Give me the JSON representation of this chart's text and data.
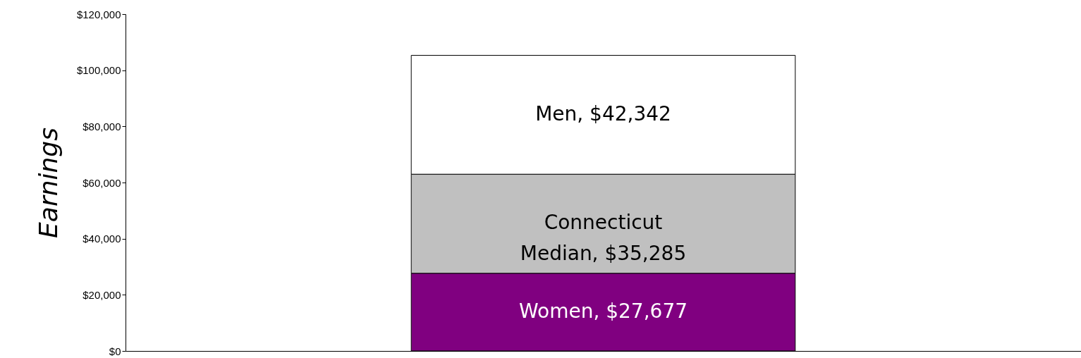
{
  "chart_data": {
    "type": "bar",
    "stacked": true,
    "ylabel": "Earnings",
    "categories": [
      null
    ],
    "series": [
      {
        "color": "#800080",
        "values": [
          27677
        ],
        "value_labels": [
          "Women, $27,677"
        ]
      },
      {
        "color": "#c0c0c0",
        "values": [
          35285
        ],
        "value_labels": [
          "Connecticut\nMedian, $35,285"
        ]
      },
      {
        "color": "#ffffff",
        "values": [
          42342
        ],
        "value_labels": [
          "Men, $42,342"
        ]
      }
    ],
    "ylim": [
      0,
      120000
    ],
    "yticks": [
      {
        "value": 0,
        "label": "$0"
      },
      {
        "value": 20000,
        "label": "$20,000"
      },
      {
        "value": 40000,
        "label": "$40,000"
      },
      {
        "value": 60000,
        "label": "$60,000"
      },
      {
        "value": 80000,
        "label": "$80,000"
      },
      {
        "value": 100000,
        "label": "$100,000"
      },
      {
        "value": 120000,
        "label": "$120,000"
      }
    ],
    "grid": false
  }
}
